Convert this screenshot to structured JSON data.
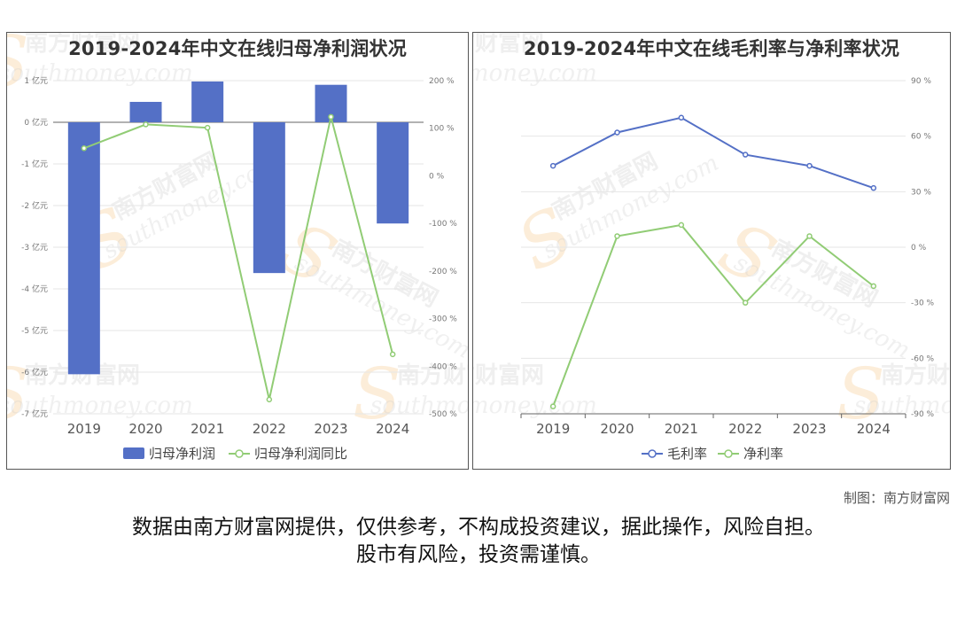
{
  "left_panel": {
    "title": "2019-2024年中文在线归母净利润状况"
  },
  "right_panel": {
    "title": "2019-2024年中文在线毛利率与净利率状况"
  },
  "watermark": {
    "cn": "南方财富网",
    "en": "southmoney.com",
    "s": "S"
  },
  "credit": "制图：南方财富网",
  "disclaimer": {
    "line1": "数据由南方财富网提供，仅供参考，不构成投资建议，据此操作，风险自担。",
    "line2": "股市有风险，投资需谨慎。"
  },
  "chart_data": [
    {
      "type": "bar",
      "title": "2019-2024年中文在线归母净利润状况",
      "categories": [
        "2019",
        "2020",
        "2021",
        "2022",
        "2023",
        "2024"
      ],
      "y_left": {
        "min": -7,
        "max": 1,
        "step": 1,
        "unit": "亿元",
        "ticks": [
          "1 亿元",
          "0 亿元",
          "-1 亿元",
          "-2 亿元",
          "-3 亿元",
          "-4 亿元",
          "-5 亿元",
          "-6 亿元",
          "-7 亿元"
        ]
      },
      "y_right": {
        "min": -500,
        "max": 200,
        "step": 100,
        "unit": "%",
        "ticks": [
          "200 %",
          "100 %",
          "0 %",
          "-100 %",
          "-200 %",
          "-300 %",
          "-400 %",
          "-500 %"
        ]
      },
      "series": [
        {
          "name": "归母净利润",
          "type": "bar",
          "axis": "left",
          "color": "#5470c6",
          "values": [
            -6.05,
            0.49,
            0.98,
            -3.62,
            0.9,
            -2.43
          ]
        },
        {
          "name": "归母净利润同比",
          "type": "line",
          "axis": "right",
          "color": "#91cc75",
          "values": [
            58,
            108,
            101,
            -470,
            124,
            -375
          ]
        }
      ],
      "legend_position": "bottom"
    },
    {
      "type": "line",
      "title": "2019-2024年中文在线毛利率与净利率状况",
      "categories": [
        "2019",
        "2020",
        "2021",
        "2022",
        "2023",
        "2024"
      ],
      "y_right": {
        "min": -90,
        "max": 90,
        "step": 30,
        "unit": "%",
        "ticks": [
          "90 %",
          "60 %",
          "30 %",
          "0 %",
          "-30 %",
          "-60 %",
          "-90 %"
        ]
      },
      "series": [
        {
          "name": "毛利率",
          "color": "#5470c6",
          "values": [
            44,
            62,
            70,
            50,
            44,
            32
          ]
        },
        {
          "name": "净利率",
          "color": "#91cc75",
          "values": [
            -86,
            6,
            12,
            -30,
            6,
            -21
          ]
        }
      ],
      "legend_position": "bottom"
    }
  ]
}
